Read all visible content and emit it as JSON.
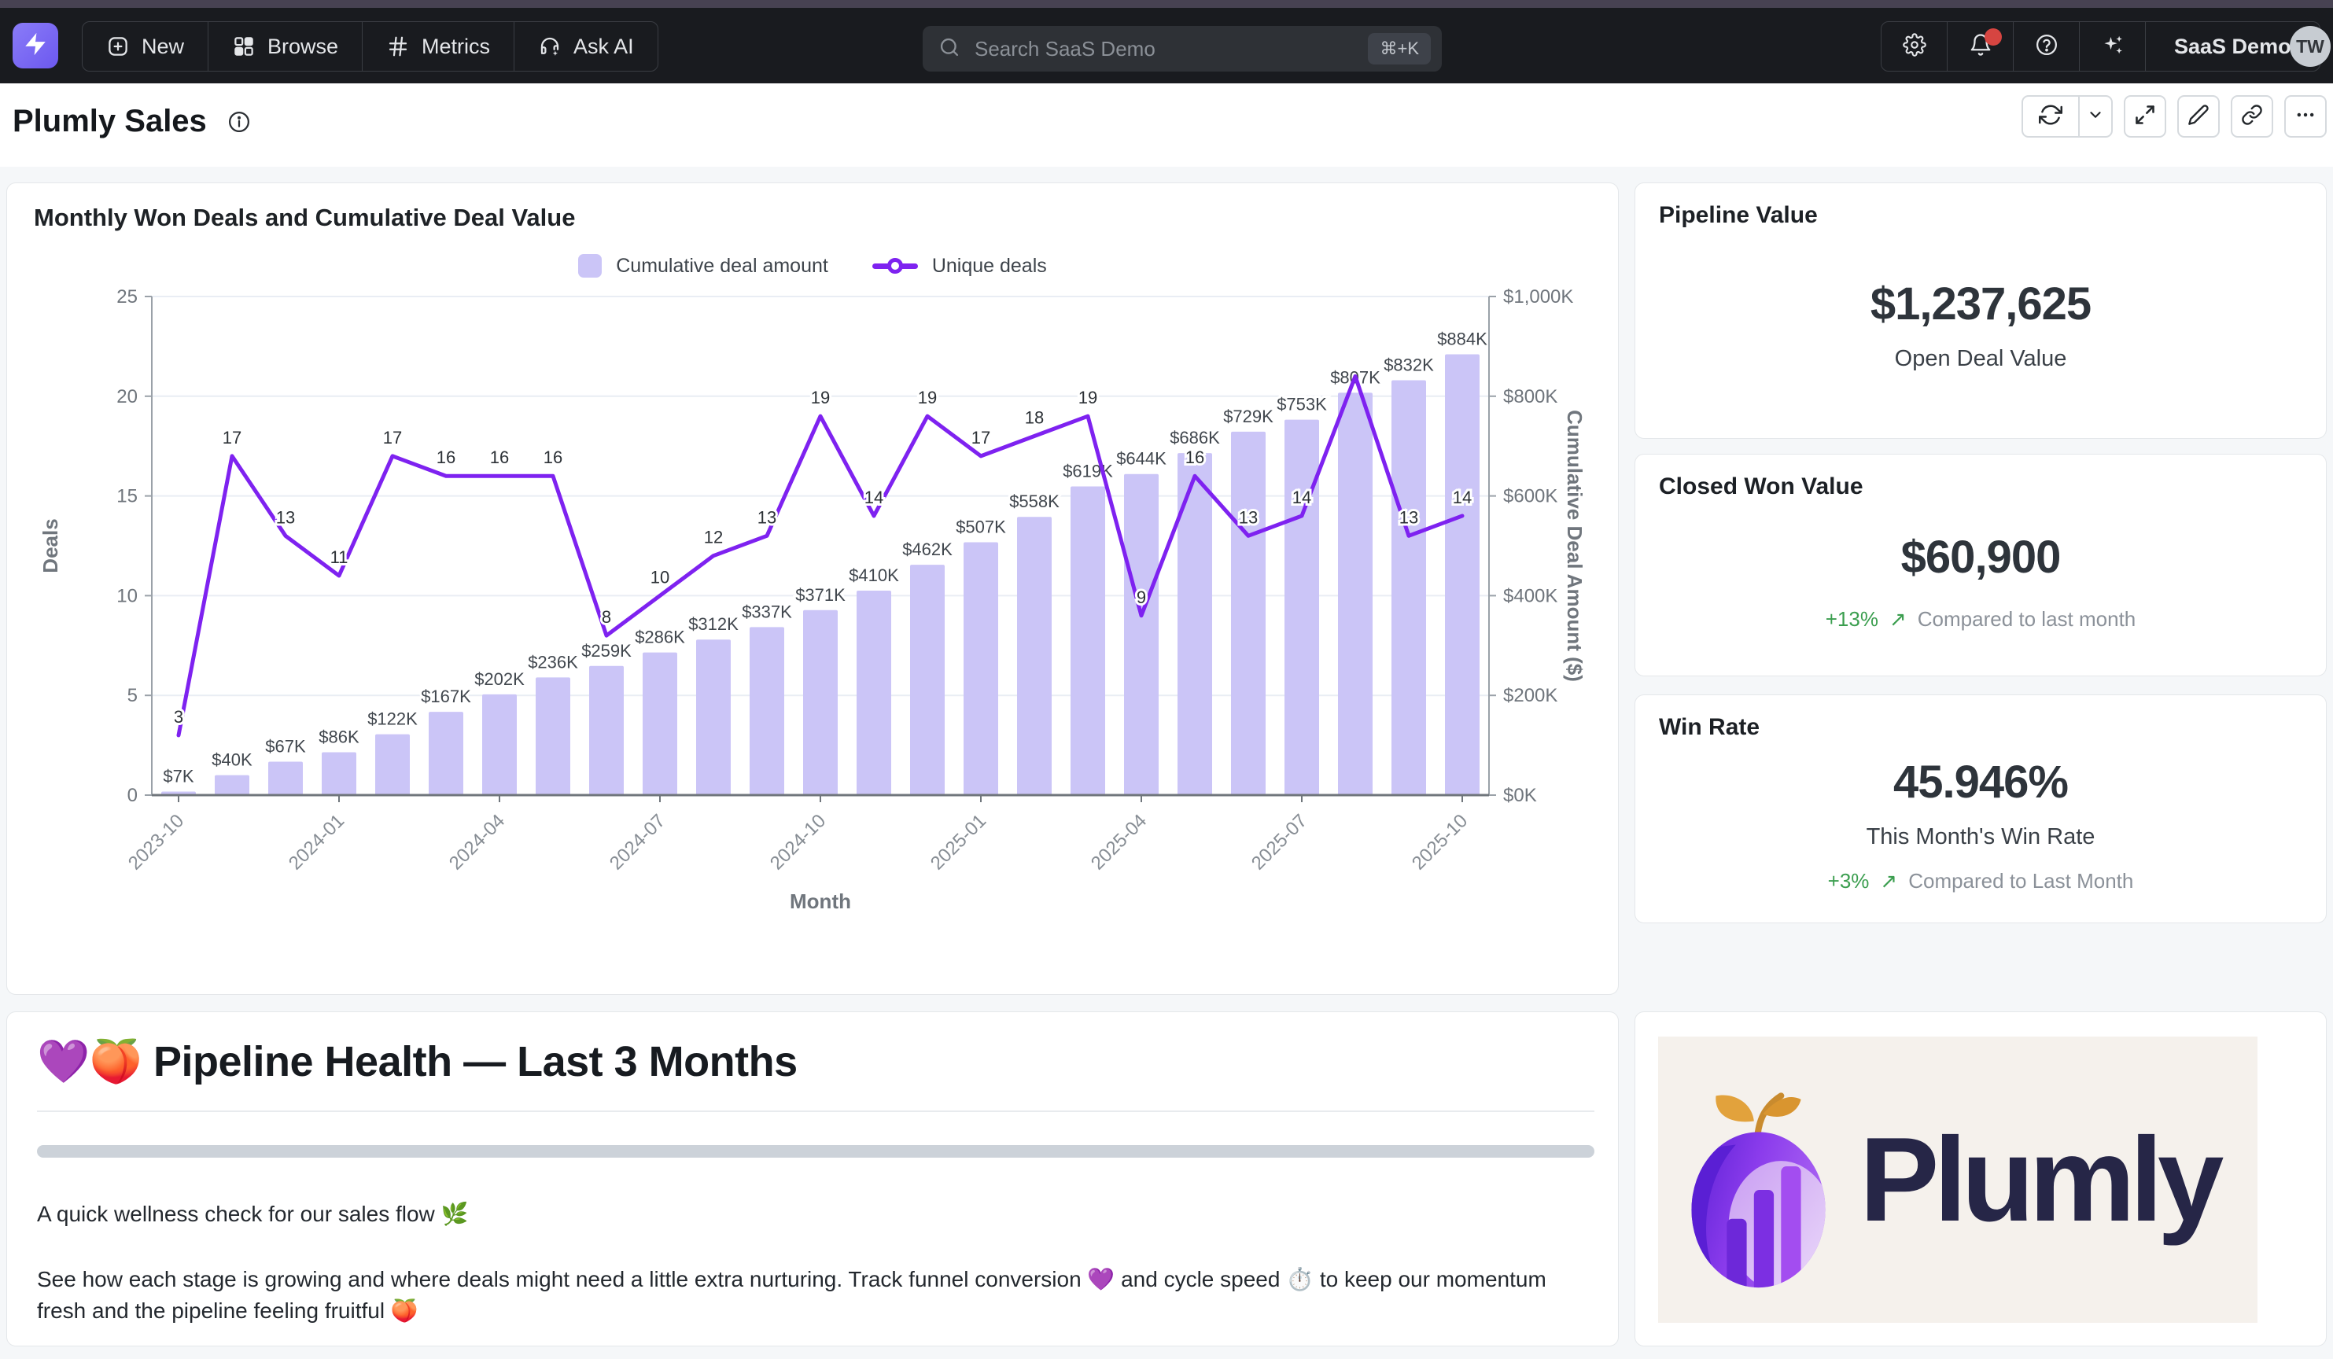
{
  "topbar": {
    "nav": [
      {
        "label": "New",
        "icon": "plus-square-icon"
      },
      {
        "label": "Browse",
        "icon": "grid-icon"
      },
      {
        "label": "Metrics",
        "icon": "hash-icon"
      },
      {
        "label": "Ask AI",
        "icon": "headset-sparkle-icon"
      }
    ],
    "search": {
      "placeholder": "Search SaaS Demo",
      "shortcut": "⌘+K"
    },
    "right": {
      "org_label": "SaaS Demo",
      "avatar_initials": "TW"
    }
  },
  "header": {
    "title": "Plumly Sales"
  },
  "chart_card": {
    "title": "Monthly Won Deals and Cumulative Deal Value",
    "legend": [
      {
        "label": "Cumulative deal amount",
        "type": "bar-swatch"
      },
      {
        "label": "Unique deals",
        "type": "line-marker"
      }
    ]
  },
  "chart_data": {
    "type": "bar",
    "combo": "bar+line dual-axis",
    "title": "Monthly Won Deals and Cumulative Deal Value",
    "xlabel": "Month",
    "ylabel_left": "Deals",
    "ylabel_right": "Cumulative Deal Amount ($)",
    "ylim_left": [
      0,
      25
    ],
    "ylim_right_k": [
      0,
      1000
    ],
    "left_ticks": [
      0,
      5,
      10,
      15,
      20,
      25
    ],
    "right_tick_labels": [
      "$0K",
      "$200K",
      "$400K",
      "$600K",
      "$800K",
      "$1,000K"
    ],
    "x_tick_every": 3,
    "grid": true,
    "legend_position": "top",
    "categories": [
      "2023-10",
      "2023-11",
      "2023-12",
      "2024-01",
      "2024-02",
      "2024-03",
      "2024-04",
      "2024-05",
      "2024-06",
      "2024-07",
      "2024-08",
      "2024-09",
      "2024-10",
      "2024-11",
      "2024-12",
      "2025-01",
      "2025-02",
      "2025-03",
      "2025-04",
      "2025-05",
      "2025-06",
      "2025-07",
      "2025-08",
      "2025-09",
      "2025-10"
    ],
    "series": [
      {
        "name": "Cumulative deal amount",
        "type": "bar",
        "axis": "right",
        "unit": "$K",
        "values": [
          7,
          40,
          67,
          86,
          122,
          167,
          202,
          236,
          259,
          286,
          312,
          337,
          371,
          410,
          462,
          507,
          558,
          619,
          644,
          686,
          729,
          753,
          807,
          832,
          884
        ]
      },
      {
        "name": "Unique deals",
        "type": "line",
        "axis": "left",
        "values": [
          3,
          17,
          13,
          11,
          17,
          16,
          16,
          16,
          8,
          10,
          12,
          13,
          19,
          14,
          19,
          17,
          18,
          19,
          9,
          16,
          13,
          14,
          21,
          13,
          14
        ],
        "unlabeled_indices": [
          22
        ]
      }
    ],
    "colors": {
      "bar": "#cbc5f7",
      "line": "#7e22f0"
    }
  },
  "kpis": [
    {
      "title": "Pipeline Value",
      "value": "$1,237,625",
      "subtitle": "Open Deal Value"
    },
    {
      "title": "Closed Won Value",
      "value": "$60,900",
      "delta": "+13%",
      "delta_arrow": "↗",
      "compare": "Compared to last month"
    },
    {
      "title": "Win Rate",
      "value": "45.946%",
      "subtitle": "This Month's Win Rate",
      "delta": "+3%",
      "delta_arrow": "↗",
      "compare": "Compared to Last Month"
    }
  ],
  "markdown": {
    "heading": "💜🍑 Pipeline Health — Last 3 Months",
    "p1": "A quick wellness check for our sales flow 🌿",
    "p2": "See how each stage is growing and where deals might need a little extra nurturing. Track funnel conversion 💜 and cycle speed ⏱️ to keep our momentum fresh and the pipeline feeling fruitful 🍑"
  },
  "logo_card": {
    "wordmark": "Plumly"
  },
  "colors": {
    "accent_purple": "#7e22f0",
    "bar_lavender": "#cbc5f7",
    "delta_green": "#3b9e4f",
    "notification_red": "#d64541"
  }
}
